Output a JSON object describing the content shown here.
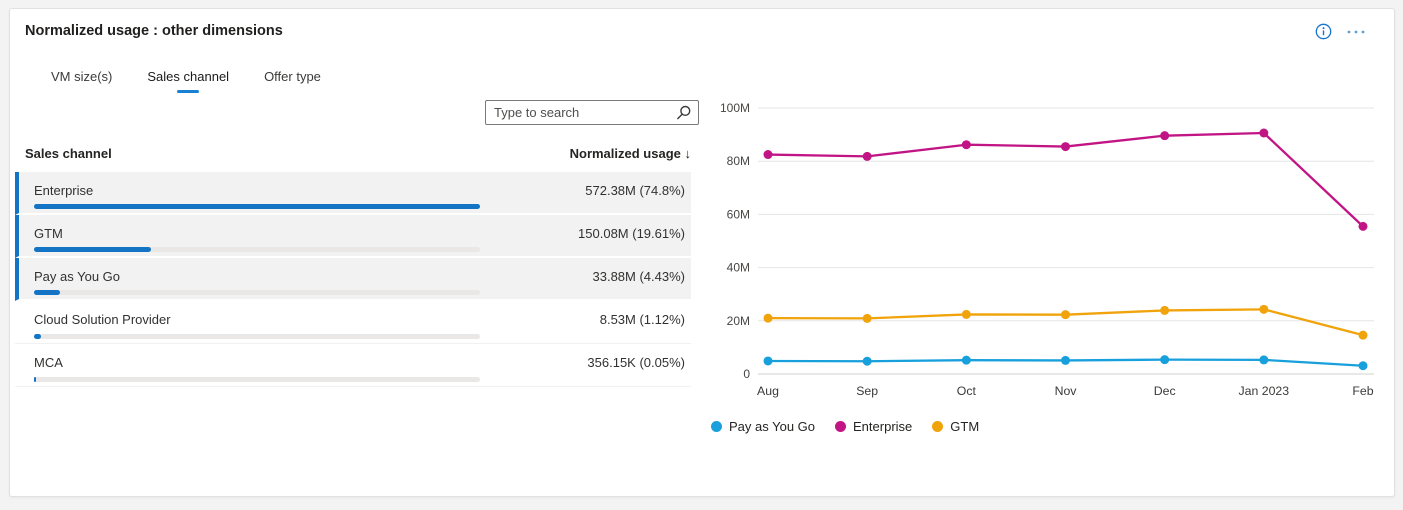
{
  "widget": {
    "title": "Normalized usage : other dimensions",
    "tabs": [
      {
        "label": "VM size(s)",
        "active": false
      },
      {
        "label": "Sales channel",
        "active": true
      },
      {
        "label": "Offer type",
        "active": false
      }
    ],
    "search": {
      "placeholder": "Type to search"
    },
    "table": {
      "name_header": "Sales channel",
      "value_header": "Normalized usage",
      "sort_indicator": "↓",
      "rows": [
        {
          "label": "Enterprise",
          "value": "572.38M (74.8%)",
          "bar_pct": 100,
          "highlighted": true
        },
        {
          "label": "GTM",
          "value": "150.08M (19.61%)",
          "bar_pct": 26.2,
          "highlighted": true
        },
        {
          "label": "Pay as You Go",
          "value": "33.88M (4.43%)",
          "bar_pct": 5.9,
          "highlighted": true
        },
        {
          "label": "Cloud Solution Provider",
          "value": "8.53M (1.12%)",
          "bar_pct": 1.5,
          "highlighted": false
        },
        {
          "label": "MCA",
          "value": "356.15K (0.05%)",
          "bar_pct": 0.3,
          "highlighted": false
        }
      ]
    }
  },
  "chart_data": {
    "type": "line",
    "x": [
      "Aug",
      "Sep",
      "Oct",
      "Nov",
      "Dec",
      "Jan 2023",
      "Feb"
    ],
    "series": [
      {
        "name": "Pay as You Go",
        "color": "#18a0dc",
        "values": [
          4.9,
          4.8,
          5.2,
          5.1,
          5.4,
          5.3,
          3.1
        ]
      },
      {
        "name": "Enterprise",
        "color": "#c21585",
        "values": [
          82.5,
          81.8,
          86.2,
          85.5,
          89.6,
          90.6,
          55.5
        ]
      },
      {
        "name": "GTM",
        "color": "#f0a30a",
        "values": [
          21.0,
          20.9,
          22.4,
          22.3,
          23.9,
          24.3,
          14.6
        ]
      }
    ],
    "title": "",
    "xlabel": "",
    "ylabel": "",
    "ylim": [
      0,
      100
    ],
    "yticks": [
      0,
      20,
      40,
      60,
      80,
      100
    ],
    "ytick_labels": [
      "0",
      "20M",
      "40M",
      "60M",
      "80M",
      "100M"
    ],
    "grid": true,
    "legend_position": "bottom"
  },
  "colors": {
    "accent_blue": "#1373c4",
    "tab_underline": "#1b7fd4",
    "icon_blue": "#1574cf",
    "row_highlight_bg": "#f2f2f2",
    "bar_track": "#e9e8e7",
    "gridline": "#e6e6e6",
    "axis_zero_line": "#d2d0ce"
  }
}
